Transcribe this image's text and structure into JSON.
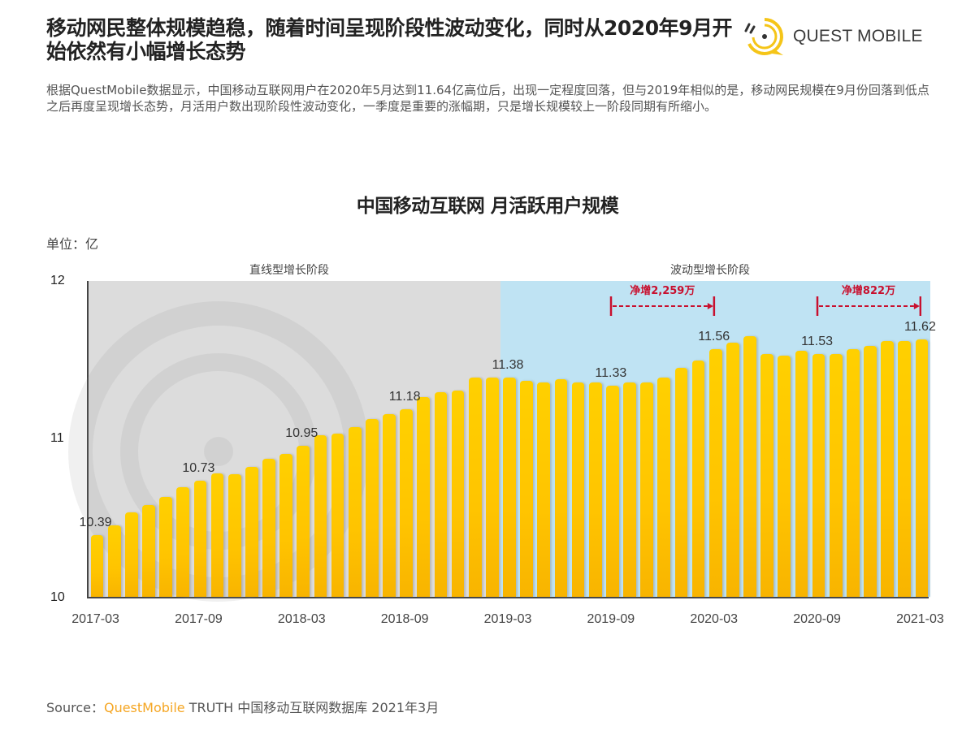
{
  "headline": "移动网民整体规模趋稳，随着时间呈现阶段性波动变化，同时从2020年9月开始依然有小幅增长态势",
  "logo": {
    "text": "QUEST MOBILE",
    "icon": "questmobile-logo-icon",
    "color": "#f5c518"
  },
  "description": "根据QuestMobile数据显示，中国移动互联网用户在2020年5月达到11.64亿高位后，出现一定程度回落，但与2019年相似的是，移动网民规模在9月份回落到低点之后再度呈现增长态势，月活用户数出现阶段性波动变化，一季度是重要的涨幅期，只是增长规模较上一阶段同期有所缩小。",
  "chart": {
    "title": "中国移动互联网 月活跃用户规模",
    "unit": "单位：亿",
    "phase_linear": "直线型增长阶段",
    "phase_wave": "波动型增长阶段",
    "annotation_1": "净增2,259万",
    "annotation_2": "净增822万"
  },
  "source": {
    "prefix": "Source：",
    "brand": "QuestMobile",
    "rest": " TRUTH 中国移动互联网数据库 2021年3月"
  },
  "colors": {
    "bar": "#ffc800",
    "gray_phase": "#dcdcdc",
    "blue_phase": "#bfe3f3",
    "annotation": "#c8102e",
    "brand": "#f5a623"
  },
  "chart_data": {
    "type": "bar",
    "title": "中国移动互联网 月活跃用户规模",
    "xlabel": "",
    "ylabel": "单位：亿",
    "ylim": [
      10,
      12
    ],
    "yticks": [
      10,
      11,
      12
    ],
    "xticks": [
      "2017-03",
      "2017-09",
      "2018-03",
      "2018-09",
      "2019-03",
      "2019-09",
      "2020-03",
      "2020-09",
      "2021-03"
    ],
    "grid": false,
    "legend": null,
    "categories": [
      "2017-03",
      "2017-04",
      "2017-05",
      "2017-06",
      "2017-07",
      "2017-08",
      "2017-09",
      "2017-10",
      "2017-11",
      "2017-12",
      "2018-01",
      "2018-02",
      "2018-03",
      "2018-04",
      "2018-05",
      "2018-06",
      "2018-07",
      "2018-08",
      "2018-09",
      "2018-10",
      "2018-11",
      "2018-12",
      "2019-01",
      "2019-02",
      "2019-03",
      "2019-04",
      "2019-05",
      "2019-06",
      "2019-07",
      "2019-08",
      "2019-09",
      "2019-10",
      "2019-11",
      "2019-12",
      "2020-01",
      "2020-02",
      "2020-03",
      "2020-04",
      "2020-05",
      "2020-06",
      "2020-07",
      "2020-08",
      "2020-09",
      "2020-10",
      "2020-11",
      "2020-12",
      "2021-01",
      "2021-02",
      "2021-03"
    ],
    "values": [
      10.39,
      10.45,
      10.53,
      10.58,
      10.63,
      10.69,
      10.73,
      10.78,
      10.77,
      10.82,
      10.87,
      10.9,
      10.95,
      11.02,
      11.03,
      11.07,
      11.12,
      11.15,
      11.18,
      11.26,
      11.29,
      11.3,
      11.38,
      11.38,
      11.38,
      11.36,
      11.35,
      11.37,
      11.35,
      11.35,
      11.33,
      11.35,
      11.35,
      11.38,
      11.44,
      11.49,
      11.56,
      11.6,
      11.64,
      11.53,
      11.52,
      11.55,
      11.53,
      11.53,
      11.56,
      11.58,
      11.61,
      11.61,
      11.62
    ],
    "data_labels": [
      {
        "x": "2017-03",
        "label": "10.39"
      },
      {
        "x": "2017-09",
        "label": "10.73"
      },
      {
        "x": "2018-03",
        "label": "10.95"
      },
      {
        "x": "2018-09",
        "label": "11.18"
      },
      {
        "x": "2019-03",
        "label": "11.38"
      },
      {
        "x": "2019-09",
        "label": "11.33"
      },
      {
        "x": "2020-03",
        "label": "11.56"
      },
      {
        "x": "2020-09",
        "label": "11.53"
      },
      {
        "x": "2021-03",
        "label": "11.62"
      }
    ],
    "phases": [
      {
        "label": "直线型增长阶段",
        "from": "2017-03",
        "to": "2019-02"
      },
      {
        "label": "波动型增长阶段",
        "from": "2019-03",
        "to": "2021-03"
      }
    ],
    "annotations": [
      {
        "text": "净增2,259万",
        "from": "2019-09",
        "to": "2020-03"
      },
      {
        "text": "净增822万",
        "from": "2020-09",
        "to": "2021-03"
      }
    ]
  }
}
